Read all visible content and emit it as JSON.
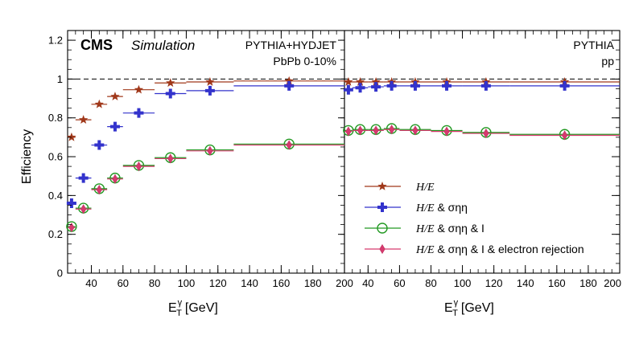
{
  "chart_data": {
    "type": "scatter",
    "ylabel": "Efficiency",
    "xlabel": "E_T^γ [GeV]",
    "ylim": [
      0,
      1.25
    ],
    "xlim": [
      25,
      200
    ],
    "yticks": [
      0,
      0.2,
      0.4,
      0.6,
      0.8,
      1,
      1.2
    ],
    "ytick_labels": [
      "0",
      "0.2",
      "0.4",
      "0.6",
      "0.8",
      "1",
      "1.2"
    ],
    "xticks": [
      40,
      60,
      80,
      100,
      120,
      140,
      160,
      180,
      200
    ],
    "xtick_labels": [
      "40",
      "60",
      "80",
      "100",
      "120",
      "140",
      "160",
      "180",
      "200"
    ],
    "reference_line": 1,
    "colors": {
      "he": "#a0381a",
      "sigma": "#3333cc",
      "iso": "#229922",
      "electron": "#d63a6e",
      "marker_outline": "#c03060"
    },
    "bins": [
      {
        "x": 27.5,
        "lo": 25,
        "hi": 30
      },
      {
        "x": 35,
        "lo": 30,
        "hi": 40
      },
      {
        "x": 45,
        "lo": 40,
        "hi": 50
      },
      {
        "x": 55,
        "lo": 50,
        "hi": 60
      },
      {
        "x": 70,
        "lo": 60,
        "hi": 80
      },
      {
        "x": 90,
        "lo": 80,
        "hi": 100
      },
      {
        "x": 115,
        "lo": 100,
        "hi": 130
      },
      {
        "x": 165,
        "lo": 130,
        "hi": 200
      }
    ],
    "panels": [
      {
        "id": "pbpb",
        "cms_label": "CMS",
        "sim_label": "Simulation",
        "generator": "PYTHIA+HYDJET",
        "system": "PbPb 0-10%",
        "series": [
          {
            "name": "he",
            "values": [
              0.7,
              0.79,
              0.87,
              0.91,
              0.945,
              0.98,
              0.985,
              0.99
            ]
          },
          {
            "name": "sigma",
            "values": [
              0.36,
              0.49,
              0.66,
              0.755,
              0.825,
              0.925,
              0.94,
              0.965
            ]
          },
          {
            "name": "iso",
            "values": [
              0.24,
              0.335,
              0.435,
              0.49,
              0.555,
              0.595,
              0.635,
              0.665
            ]
          },
          {
            "name": "electron",
            "values": [
              0.235,
              0.33,
              0.43,
              0.485,
              0.55,
              0.59,
              0.63,
              0.66
            ]
          }
        ]
      },
      {
        "id": "pp",
        "generator": "PYTHIA",
        "system": "pp",
        "series": [
          {
            "name": "he",
            "values": [
              0.985,
              0.985,
              0.985,
              0.985,
              0.985,
              0.985,
              0.985,
              0.985
            ]
          },
          {
            "name": "sigma",
            "values": [
              0.945,
              0.955,
              0.96,
              0.965,
              0.965,
              0.965,
              0.965,
              0.965
            ]
          },
          {
            "name": "iso",
            "values": [
              0.735,
              0.74,
              0.74,
              0.745,
              0.74,
              0.735,
              0.725,
              0.715
            ]
          },
          {
            "name": "electron",
            "values": [
              0.73,
              0.735,
              0.735,
              0.74,
              0.735,
              0.73,
              0.72,
              0.71
            ]
          }
        ]
      }
    ],
    "legend": {
      "position": "lower-right of right panel",
      "entries": [
        {
          "series": "he",
          "lead": "H/E",
          "tail": ""
        },
        {
          "series": "sigma",
          "lead": "H/E",
          "tail": "& σηη"
        },
        {
          "series": "iso",
          "lead": "H/E",
          "tail": "& σηη & I"
        },
        {
          "series": "electron",
          "lead": "H/E",
          "tail": "& σηη & I & electron rejection"
        }
      ]
    }
  }
}
